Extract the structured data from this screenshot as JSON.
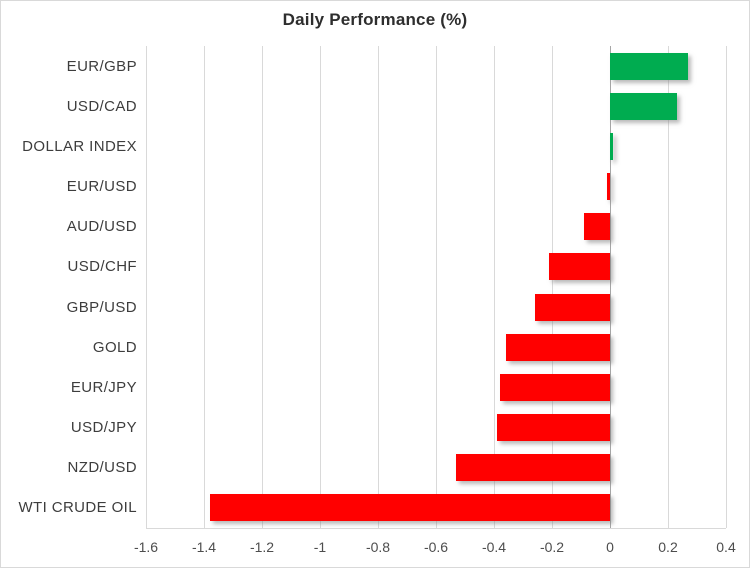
{
  "chart_data": {
    "type": "bar",
    "orientation": "horizontal",
    "title": "Daily Performance (%)",
    "categories": [
      "EUR/GBP",
      "USD/CAD",
      "DOLLAR INDEX",
      "EUR/USD",
      "AUD/USD",
      "USD/CHF",
      "GBP/USD",
      "GOLD",
      "EUR/JPY",
      "USD/JPY",
      "NZD/USD",
      "WTI CRUDE OIL"
    ],
    "values": [
      0.27,
      0.23,
      0.01,
      -0.01,
      -0.09,
      -0.21,
      -0.26,
      -0.36,
      -0.38,
      -0.39,
      -0.53,
      -1.38
    ],
    "xlabel": "",
    "ylabel": "",
    "xlim": [
      -1.6,
      0.4
    ],
    "xticks": [
      "-1.6",
      "-1.4",
      "-1.2",
      "-1",
      "-0.8",
      "-0.6",
      "-0.4",
      "-0.2",
      "0",
      "0.2",
      "0.4"
    ],
    "grid": true,
    "legend": "none",
    "colors": {
      "positive": "#00AC50",
      "negative": "#FF0000",
      "gridline": "#d9d9d9",
      "zero_line": "#a6a6a6",
      "title_text": "#2e2e2e",
      "category_text": "#3d3d3d",
      "tick_text": "#4d4d4d"
    }
  }
}
